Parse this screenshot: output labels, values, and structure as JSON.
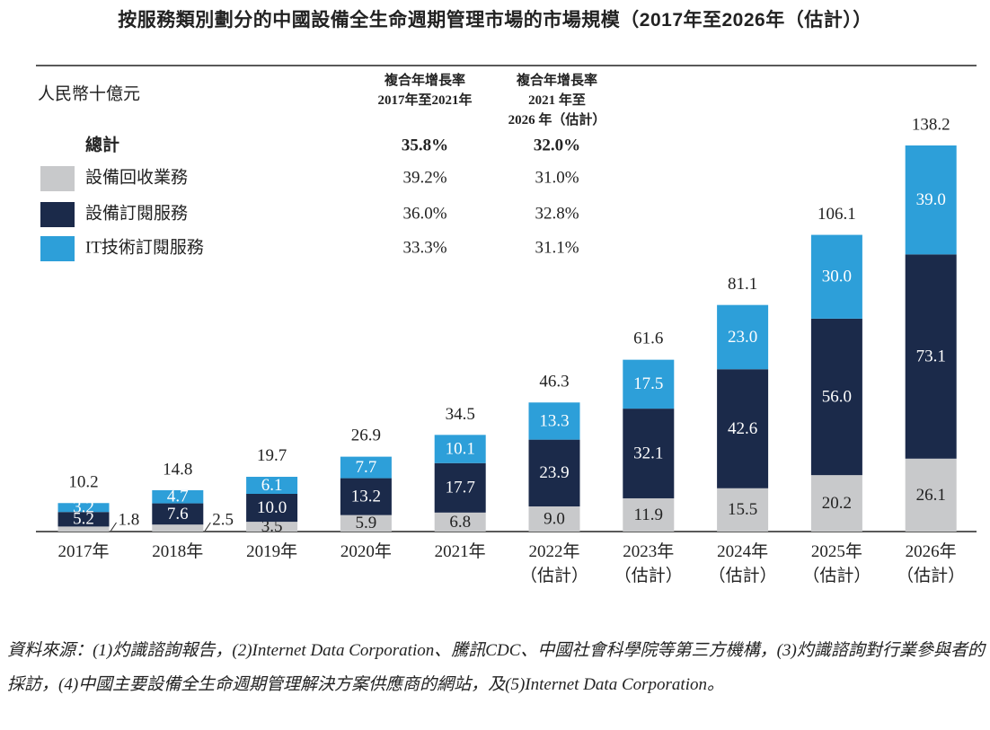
{
  "chart_data": {
    "type": "stacked-bar",
    "title": "按服務類別劃分的中國設備全生命週期管理市場的市場規模（2017年至2026年（估計））",
    "unit": "人民幣十億元",
    "categories": [
      "2017年",
      "2018年",
      "2019年",
      "2020年",
      "2021年",
      "2022年\n（估計）",
      "2023年\n（估計）",
      "2024年\n（估計）",
      "2025年\n（估計）",
      "2026年\n（估計）"
    ],
    "series": [
      {
        "name": "設備回收業務",
        "color": "#c8c9cb",
        "label_color": "#222222",
        "values": [
          1.8,
          2.5,
          3.5,
          5.9,
          6.8,
          9.0,
          11.9,
          15.5,
          20.2,
          26.1
        ],
        "value_labels": [
          "1.8",
          "2.5",
          "3.5",
          "5.9",
          "6.8",
          "9.0",
          "11.9",
          "15.5",
          "20.2",
          "26.1"
        ]
      },
      {
        "name": "設備訂閱服務",
        "color": "#1b2a4a",
        "label_color": "#ffffff",
        "values": [
          5.2,
          7.6,
          10.0,
          13.2,
          17.7,
          23.9,
          32.1,
          42.6,
          56.0,
          73.1
        ],
        "value_labels": [
          "5.2",
          "7.6",
          "10.0",
          "13.2",
          "17.7",
          "23.9",
          "32.1",
          "42.6",
          "56.0",
          "73.1"
        ]
      },
      {
        "name": "IT技術訂閱服務",
        "color": "#2d9fd9",
        "label_color": "#ffffff",
        "values": [
          3.2,
          4.7,
          6.1,
          7.7,
          10.1,
          13.3,
          17.5,
          23.0,
          30.0,
          39.0
        ],
        "value_labels": [
          "3.2",
          "4.7",
          "6.1",
          "7.7",
          "10.1",
          "13.3",
          "17.5",
          "23.0",
          "30.0",
          "39.0"
        ]
      }
    ],
    "totals": [
      10.2,
      14.8,
      19.7,
      26.9,
      34.5,
      46.3,
      61.6,
      81.1,
      106.1,
      138.2
    ],
    "cagr_headers": [
      "複合年增長率\n2017年至2021年",
      "複合年增長率\n2021 年至\n2026 年（估計）"
    ],
    "cagr_total": {
      "label": "總計",
      "values": [
        "35.8%",
        "32.0%"
      ]
    },
    "cagr_rows": [
      [
        "39.2%",
        "31.0%"
      ],
      [
        "36.0%",
        "32.8%"
      ],
      [
        "33.3%",
        "31.1%"
      ]
    ],
    "source": "資料來源：(1)灼識諮詢報告，(2)Internet Data Corporation、騰訊CDC、中國社會科學院等第三方機構，(3)灼識諮詢對行業參與者的採訪，(4)中國主要設備全生命週期管理解決方案供應商的網站，及(5)Internet Data Corporation。"
  }
}
